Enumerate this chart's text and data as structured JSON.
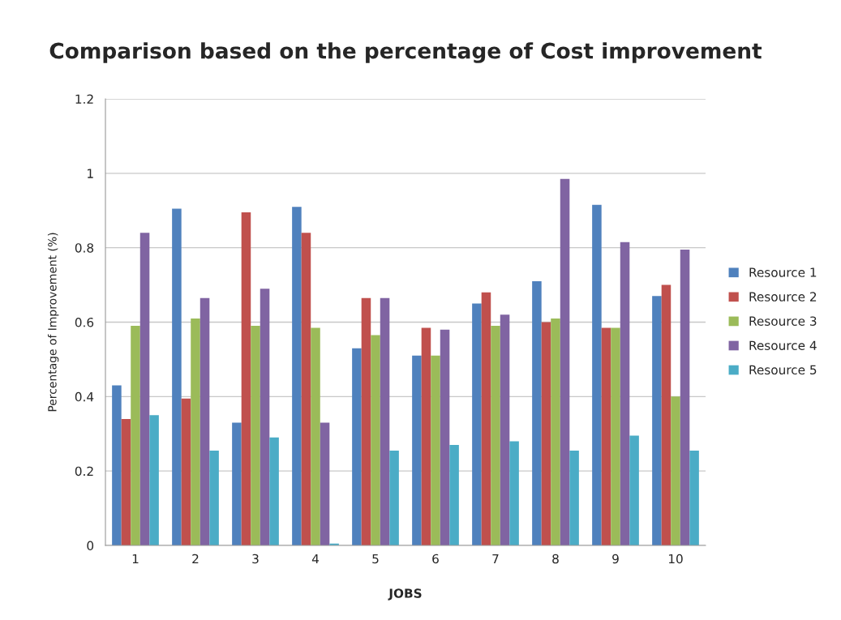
{
  "chart_data": {
    "type": "bar",
    "title": "Comparison based on the percentage of Cost improvement",
    "xlabel": "JOBS",
    "ylabel": "Percentage of Improvement (%)",
    "categories": [
      "1",
      "2",
      "3",
      "4",
      "5",
      "6",
      "7",
      "8",
      "9",
      "10"
    ],
    "series": [
      {
        "name": "Resource 1",
        "color": "#4f81bd",
        "values": [
          0.43,
          0.905,
          0.33,
          0.91,
          0.53,
          0.51,
          0.65,
          0.71,
          0.915,
          0.67
        ]
      },
      {
        "name": "Resource 2",
        "color": "#c0504d",
        "values": [
          0.34,
          0.395,
          0.895,
          0.84,
          0.665,
          0.585,
          0.68,
          0.6,
          0.585,
          0.7
        ]
      },
      {
        "name": "Resource 3",
        "color": "#9bbb59",
        "values": [
          0.59,
          0.61,
          0.59,
          0.585,
          0.565,
          0.51,
          0.59,
          0.61,
          0.585,
          0.4
        ]
      },
      {
        "name": "Resource 4",
        "color": "#8064a2",
        "values": [
          0.84,
          0.665,
          0.69,
          0.33,
          0.665,
          0.58,
          0.62,
          0.985,
          0.815,
          0.795
        ]
      },
      {
        "name": "Resource 5",
        "color": "#4bacc6",
        "values": [
          0.35,
          0.255,
          0.29,
          0.005,
          0.255,
          0.27,
          0.28,
          0.255,
          0.295,
          0.255
        ]
      }
    ],
    "ylim": [
      0,
      1.2
    ],
    "yticks": [
      0,
      0.2,
      0.4,
      0.6,
      0.8,
      1,
      1.2
    ],
    "grid": "y",
    "legend": "right"
  }
}
